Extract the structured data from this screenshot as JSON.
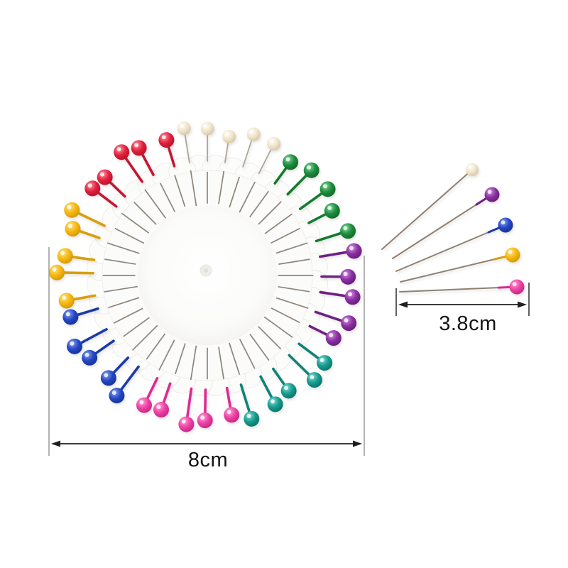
{
  "image": {
    "background_color": "#ffffff",
    "subject": "Round plastic pinwheel holding 40 pearl-head sewing pins in 8 colors, five loose pins fanned at right, with size annotations"
  },
  "pin_wheel": {
    "total_pins": 40,
    "pins_per_color": 5,
    "color_order_clockwise_from_top": [
      "white",
      "green",
      "purple",
      "teal",
      "pink",
      "blue",
      "yellow",
      "red"
    ],
    "colors": {
      "white": {
        "base": "#f0e5cc",
        "highlight": "#fffdf4",
        "dark": "#c9b994",
        "stem": "#aba69c"
      },
      "green": {
        "base": "#1d8c3c",
        "highlight": "#86dba1",
        "dark": "#0b5a21",
        "stem": "#177a31"
      },
      "purple": {
        "base": "#8a2fa2",
        "highlight": "#d293e2",
        "dark": "#551566",
        "stem": "#6e2384"
      },
      "teal": {
        "base": "#149a8d",
        "highlight": "#85dcd2",
        "dark": "#09645a",
        "stem": "#108379"
      },
      "pink": {
        "base": "#ee3fa4",
        "highlight": "#ffa3d6",
        "dark": "#ad1c72",
        "stem": "#dd2a92"
      },
      "blue": {
        "base": "#2446c4",
        "highlight": "#8ba4f0",
        "dark": "#122a7e",
        "stem": "#1d3aa9"
      },
      "yellow": {
        "base": "#f5b70d",
        "highlight": "#ffe388",
        "dark": "#c28800",
        "stem": "#d79f08"
      },
      "red": {
        "base": "#e2203c",
        "highlight": "#ff93a2",
        "dark": "#a20c24",
        "stem": "#c61532"
      }
    },
    "disc_color": "#fbfbfa",
    "needle_color": "#8c857a"
  },
  "loose_pins": {
    "count": 5,
    "colors_top_to_bottom": [
      "white",
      "purple",
      "blue",
      "yellow",
      "pink"
    ],
    "needle_color": "#8f8171"
  },
  "measurements": {
    "line_color": "#1f1f1f",
    "extension_line_color": "#9a9a9a",
    "text_color": "#141414",
    "wheel_width": {
      "label": "8cm"
    },
    "pin_length": {
      "label": "3.8cm"
    }
  }
}
